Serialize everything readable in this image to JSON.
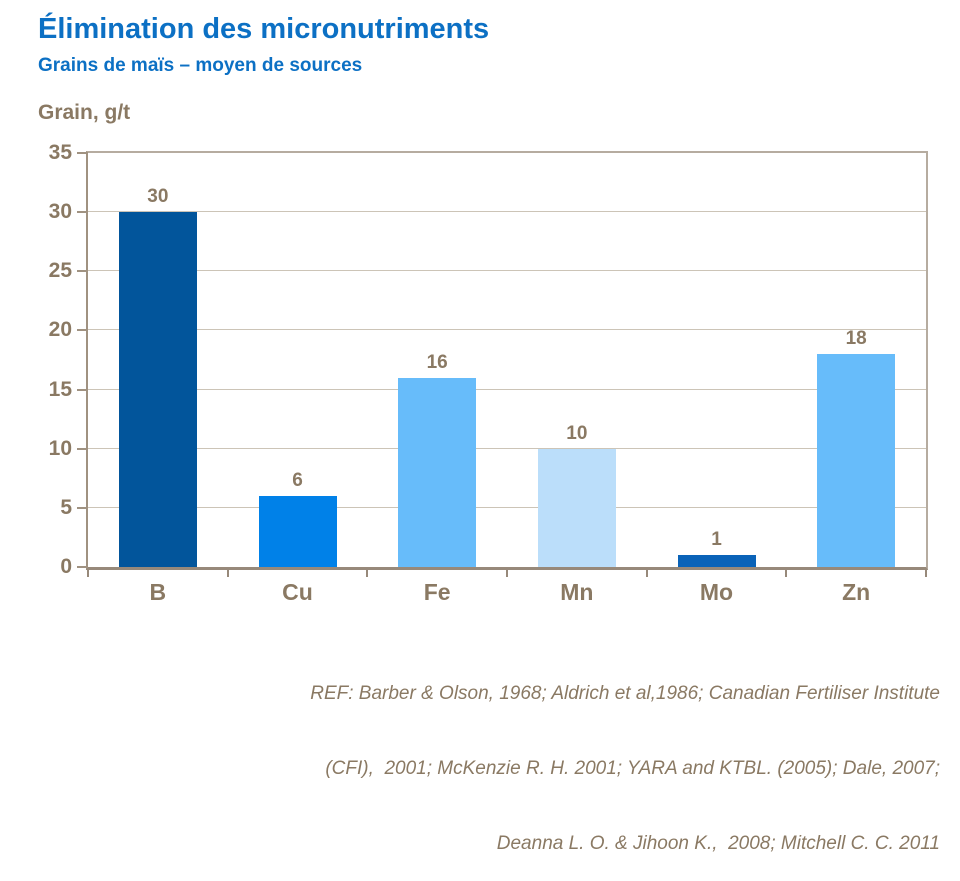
{
  "header": {
    "title": "Élimination des micronutriments",
    "subtitle": "Grains de maïs – moyen de sources"
  },
  "chart_data": {
    "type": "bar",
    "title": "Élimination des micronutriments",
    "subtitle": "Grains de maïs – moyen de sources",
    "ylabel": "Grain, g/t",
    "xlabel": "",
    "categories": [
      "B",
      "Cu",
      "Fe",
      "Mn",
      "Mo",
      "Zn"
    ],
    "values": [
      30,
      6,
      16,
      10,
      1,
      18
    ],
    "bar_colors": [
      "#02559B",
      "#0081E8",
      "#67BCFA",
      "#BBDEFA",
      "#0A63B8",
      "#67BCFA"
    ],
    "ylim": [
      0,
      35
    ],
    "ytick_step": 5,
    "ytick_labels": [
      "0",
      "5",
      "10",
      "15",
      "20",
      "25",
      "30",
      "35"
    ],
    "grid": true,
    "legend": "none",
    "value_labels": [
      30,
      6,
      16,
      10,
      1,
      18
    ]
  },
  "reference": {
    "lines": [
      "REF: Barber & Olson, 1968; Aldrich et al,1986; Canadian Fertiliser Institute",
      "(CFI),  2001; McKenzie R. H. 2001; YARA and KTBL. (2005); Dale, 2007;",
      "Deanna L. O. & Jihoon K.,  2008; Mitchell C. C. 2011"
    ]
  },
  "colors": {
    "title_blue": "#0C70C4",
    "axis_text_taupe": "#8A7963",
    "gridline": "#CCC4B7",
    "axis_line": "#A09281",
    "baseline": "#97897A",
    "background": "#FFFFFF"
  }
}
